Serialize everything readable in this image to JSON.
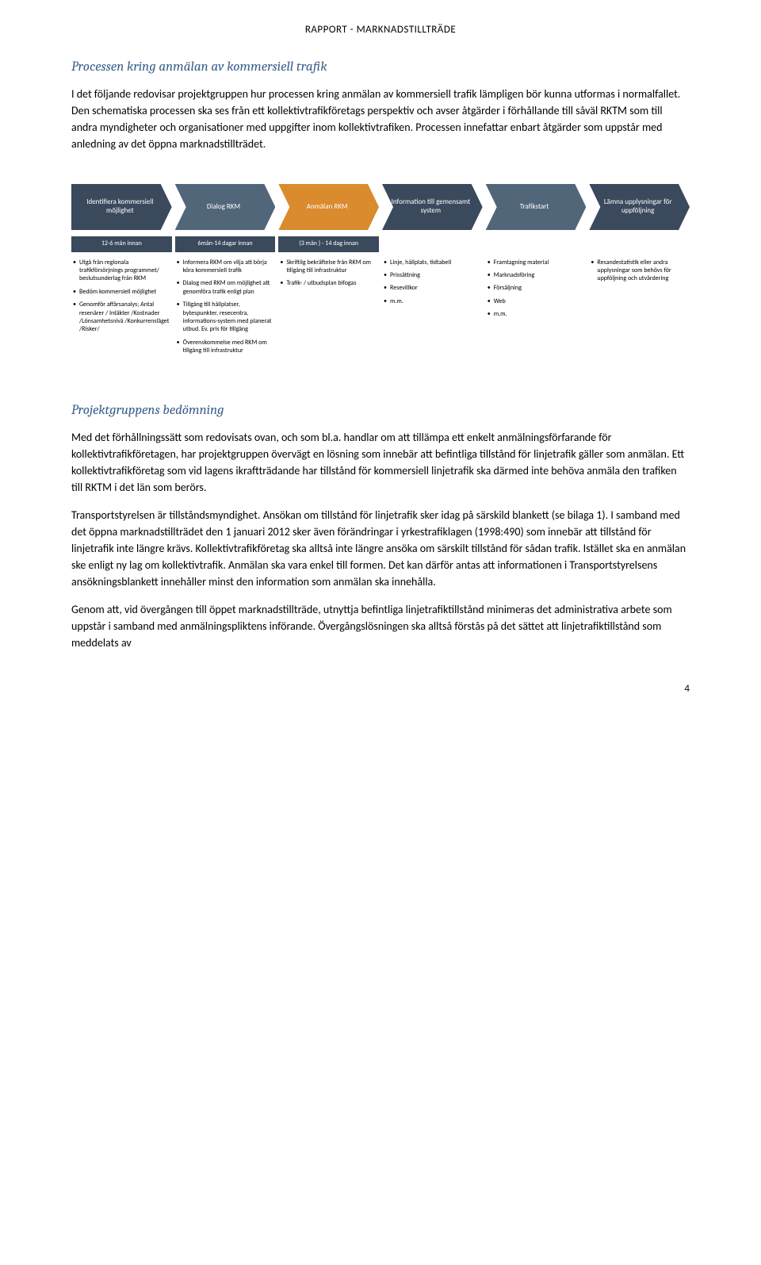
{
  "header": "RAPPORT - MARKNADSTILLTRÄDE",
  "section1": {
    "heading": "Processen kring anmälan av kommersiell trafik",
    "p1": "I det följande redovisar projektgruppen hur processen kring anmälan av kommersiell trafik lämpligen bör kunna utformas i normalfallet. Den schematiska processen ska ses från ett kollektivtrafikföretags perspektiv och avser åtgärder i förhållande till såväl RKTM som till andra myndigheter och organisationer med uppgifter inom kollektivtrafiken. Processen innefattar enbart åtgärder som uppstår med anledning av det öppna marknadstillträdet."
  },
  "flow": {
    "arrows": [
      {
        "label": "Identifiera kommersiell möjlighet",
        "color": "#3a4a5c"
      },
      {
        "label": "Dialog RKM",
        "color": "#52667a"
      },
      {
        "label": "Anmälan RKM",
        "color": "#d98b2e"
      },
      {
        "label": "Information till gemensamt system",
        "color": "#3a4a5c"
      },
      {
        "label": "Trafikstart",
        "color": "#52667a"
      },
      {
        "label": "Lämna upplysningar för uppföljning",
        "color": "#3a4a5c"
      }
    ],
    "subheads": [
      "12-6 mån innan",
      "6mån-14 dagar innan",
      "(3 mån ) - 14 dag innan",
      "",
      "",
      ""
    ],
    "bullets": [
      [
        "Utgå från regionala trafikförsörjnings programmet/ beslutsunderlag från RKM",
        "Bedöm kommersiell möjlighet",
        "Genomför affärsanalys; Antal resenärer / Intäkter /Kostnader /Lönsamhetsnivå /Konkurrensläget /Risker/"
      ],
      [
        "Informera RKM om vilja att börja köra kommersiell trafik",
        "Dialog med RKM om möjlighet att genomföra trafik enligt plan",
        "Tillgång till hållplatser, bytespunkter, resecentra, informations-system med planerat utbud. Ev. pris för tillgång",
        "Överenskommelse med RKM om tillgång till infrastruktur"
      ],
      [
        "Skriftlig bekräftelse från RKM om tillgång till infrastruktur",
        "Trafik- / utbudsplan bifogas"
      ],
      [
        "Linje, hållplats, tidtabell",
        "Prissättning",
        "Resevillkor",
        "m.m."
      ],
      [
        "Framtagning material",
        "Marknadsföring",
        "Försäljning",
        "Web",
        "m.m."
      ],
      [
        "Resandestatistik eller andra upplysningar som behövs för uppföljning och utvärdering"
      ]
    ]
  },
  "section2": {
    "heading": "Projektgruppens bedömning",
    "p1": "Med det förhållningssätt som redovisats ovan, och som bl.a. handlar om att tillämpa ett enkelt anmälningsförfarande för kollektivtrafikföretagen, har projektgruppen övervägt en lösning som innebär att befintliga tillstånd för linjetrafik gäller som anmälan. Ett kollektivtrafikföretag som vid lagens ikraftträdande har tillstånd för kommersiell linjetrafik ska därmed inte behöva anmäla den trafiken till RKTM i det län som berörs.",
    "p2": "Transportstyrelsen är tillståndsmyndighet. Ansökan om tillstånd för linjetrafik sker idag på särskild blankett (se bilaga 1). I samband med det öppna marknadstillträdet den 1 januari 2012 sker även förändringar i yrkestrafiklagen (1998:490) som innebär att tillstånd för linjetrafik inte längre krävs. Kollektivtrafikföretag ska alltså inte längre ansöka om särskilt tillstånd för sådan trafik. Istället ska en anmälan ske enligt ny lag om kollektivtrafik. Anmälan ska vara enkel till formen. Det kan därför antas att informationen i Transportstyrelsens ansökningsblankett innehåller minst den information som anmälan ska innehålla.",
    "p3": "Genom att, vid övergången till öppet marknadstillträde, utnyttja befintliga linjetrafiktillstånd minimeras det administrativa arbete som uppstår i samband med anmälningspliktens införande. Övergångslösningen ska alltså förstås på det sättet att linjetrafiktillstånd som meddelats av"
  },
  "page_num": "4"
}
